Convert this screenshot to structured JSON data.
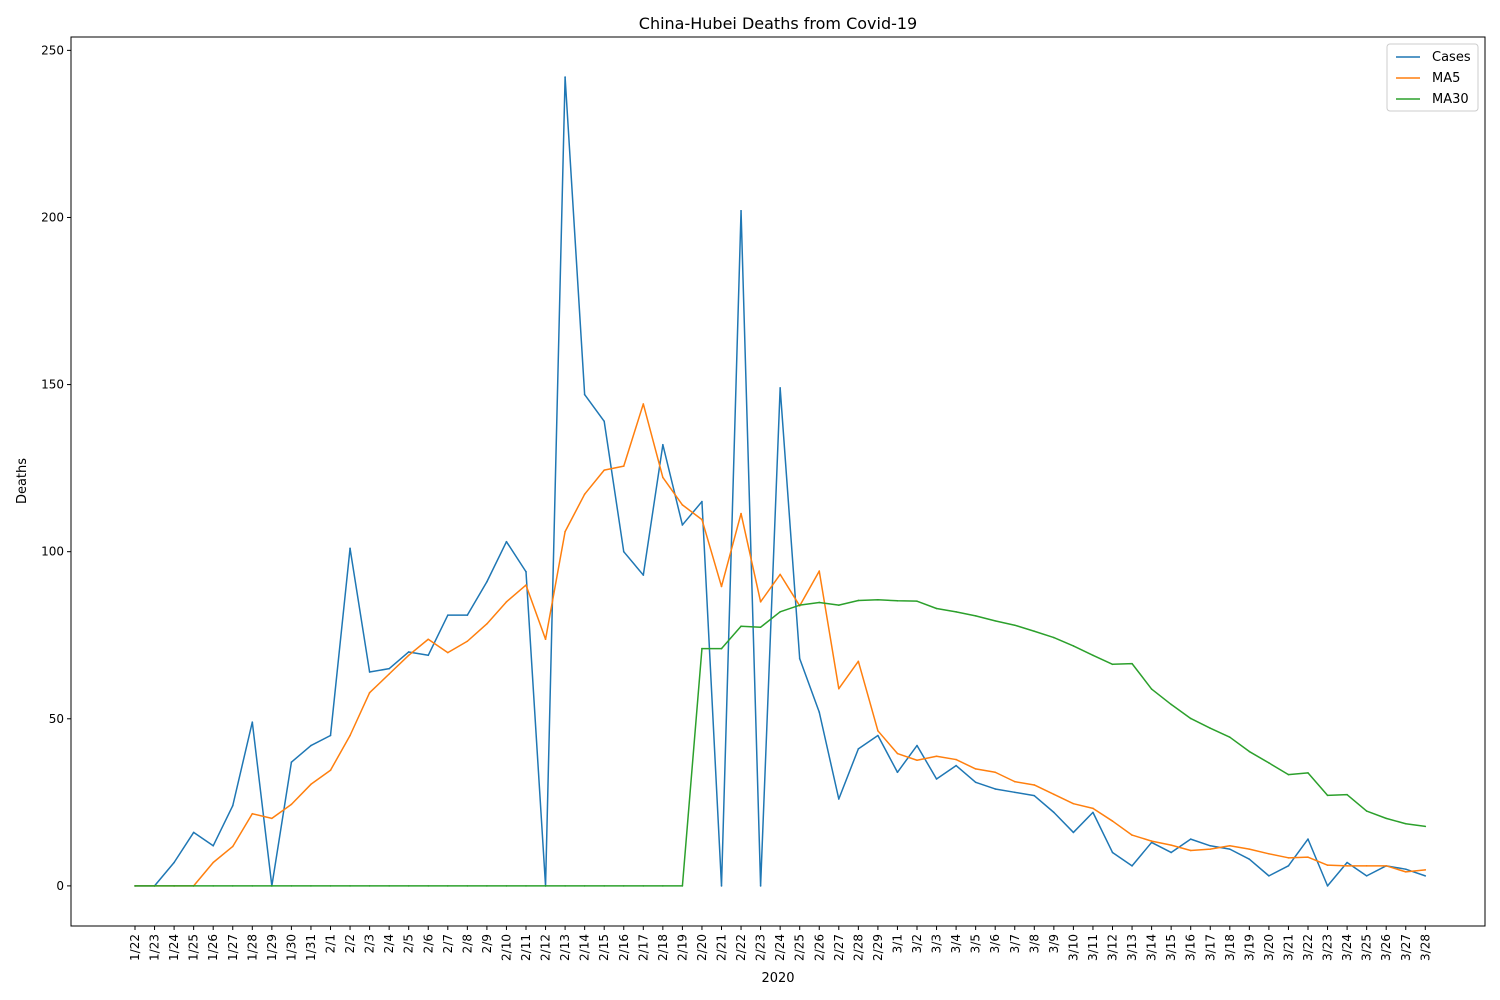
{
  "chart_data": {
    "type": "line",
    "title": "China-Hubei Deaths from Covid-19",
    "xlabel": "2020",
    "ylabel": "Deaths",
    "ylim": [
      -12,
      254
    ],
    "yticks": [
      0,
      50,
      100,
      150,
      200,
      250
    ],
    "grid": false,
    "legend_position": "top-right",
    "categories": [
      "1/22",
      "1/23",
      "1/24",
      "1/25",
      "1/26",
      "1/27",
      "1/28",
      "1/29",
      "1/30",
      "1/31",
      "2/1",
      "2/2",
      "2/3",
      "2/4",
      "2/5",
      "2/6",
      "2/7",
      "2/8",
      "2/9",
      "2/10",
      "2/11",
      "2/12",
      "2/13",
      "2/14",
      "2/15",
      "2/16",
      "2/17",
      "2/18",
      "2/19",
      "2/20",
      "2/21",
      "2/22",
      "2/23",
      "2/24",
      "2/25",
      "2/26",
      "2/27",
      "2/28",
      "2/29",
      "3/1",
      "3/2",
      "3/3",
      "3/4",
      "3/5",
      "3/6",
      "3/7",
      "3/8",
      "3/9",
      "3/10",
      "3/11",
      "3/12",
      "3/13",
      "3/14",
      "3/15",
      "3/16",
      "3/17",
      "3/18",
      "3/19",
      "3/20",
      "3/21",
      "3/22",
      "3/23",
      "3/24",
      "3/25",
      "3/26",
      "3/27",
      "3/28"
    ],
    "series": [
      {
        "name": "Cases",
        "color": "#1f77b4",
        "values": [
          0,
          0,
          7,
          16,
          12,
          24,
          49,
          0,
          37,
          42,
          45,
          101,
          64,
          65,
          70,
          69,
          81,
          81,
          91,
          103,
          94,
          0,
          242,
          147,
          139,
          100,
          93,
          132,
          108,
          115,
          0,
          202,
          0,
          149,
          68,
          52,
          26,
          41,
          45,
          34,
          42,
          32,
          36,
          31,
          29,
          28,
          27,
          22,
          16,
          22,
          10,
          6,
          13,
          10,
          14,
          12,
          11,
          8,
          3,
          6,
          14,
          0,
          7,
          3,
          6,
          5,
          3
        ]
      },
      {
        "name": "MA5",
        "color": "#ff7f0e",
        "values": [
          0,
          0,
          0,
          0,
          7,
          11.8,
          21.6,
          20.2,
          24.4,
          30.4,
          34.6,
          45,
          57.8,
          63.4,
          69,
          73.8,
          69.8,
          73.2,
          78.4,
          85,
          90,
          73.8,
          106,
          117.2,
          124.4,
          125.6,
          144.2,
          122.2,
          114,
          109.6,
          89.6,
          111.4,
          85,
          93.2,
          83.8,
          94.2,
          59,
          67.2,
          46.4,
          39.6,
          37.6,
          38.8,
          37.8,
          35,
          34,
          31.2,
          30.2,
          27.4,
          24.6,
          23.2,
          19.4,
          15.2,
          13.4,
          12.2,
          10.6,
          11,
          12,
          11,
          9.6,
          8.4,
          8.6,
          6.2,
          6,
          6,
          6,
          4.2,
          4.8
        ]
      },
      {
        "name": "MA30",
        "color": "#2ca02c",
        "values": [
          0,
          0,
          0,
          0,
          0,
          0,
          0,
          0,
          0,
          0,
          0,
          0,
          0,
          0,
          0,
          0,
          0,
          0,
          0,
          0,
          0,
          0,
          0,
          0,
          0,
          0,
          0,
          0,
          0,
          71,
          71,
          77.7,
          77.4,
          82,
          84,
          84.8,
          84,
          85.4,
          85.6,
          85.3,
          85.2,
          83,
          82,
          80.8,
          79.3,
          78,
          76.2,
          74.3,
          71.8,
          69,
          66.3,
          66.5,
          58.9,
          54.3,
          50.1,
          47.2,
          44.5,
          40.2,
          36.8,
          33.3,
          33.8,
          27.1,
          27.3,
          22.4,
          20.2,
          18.6,
          17.8
        ]
      }
    ]
  }
}
